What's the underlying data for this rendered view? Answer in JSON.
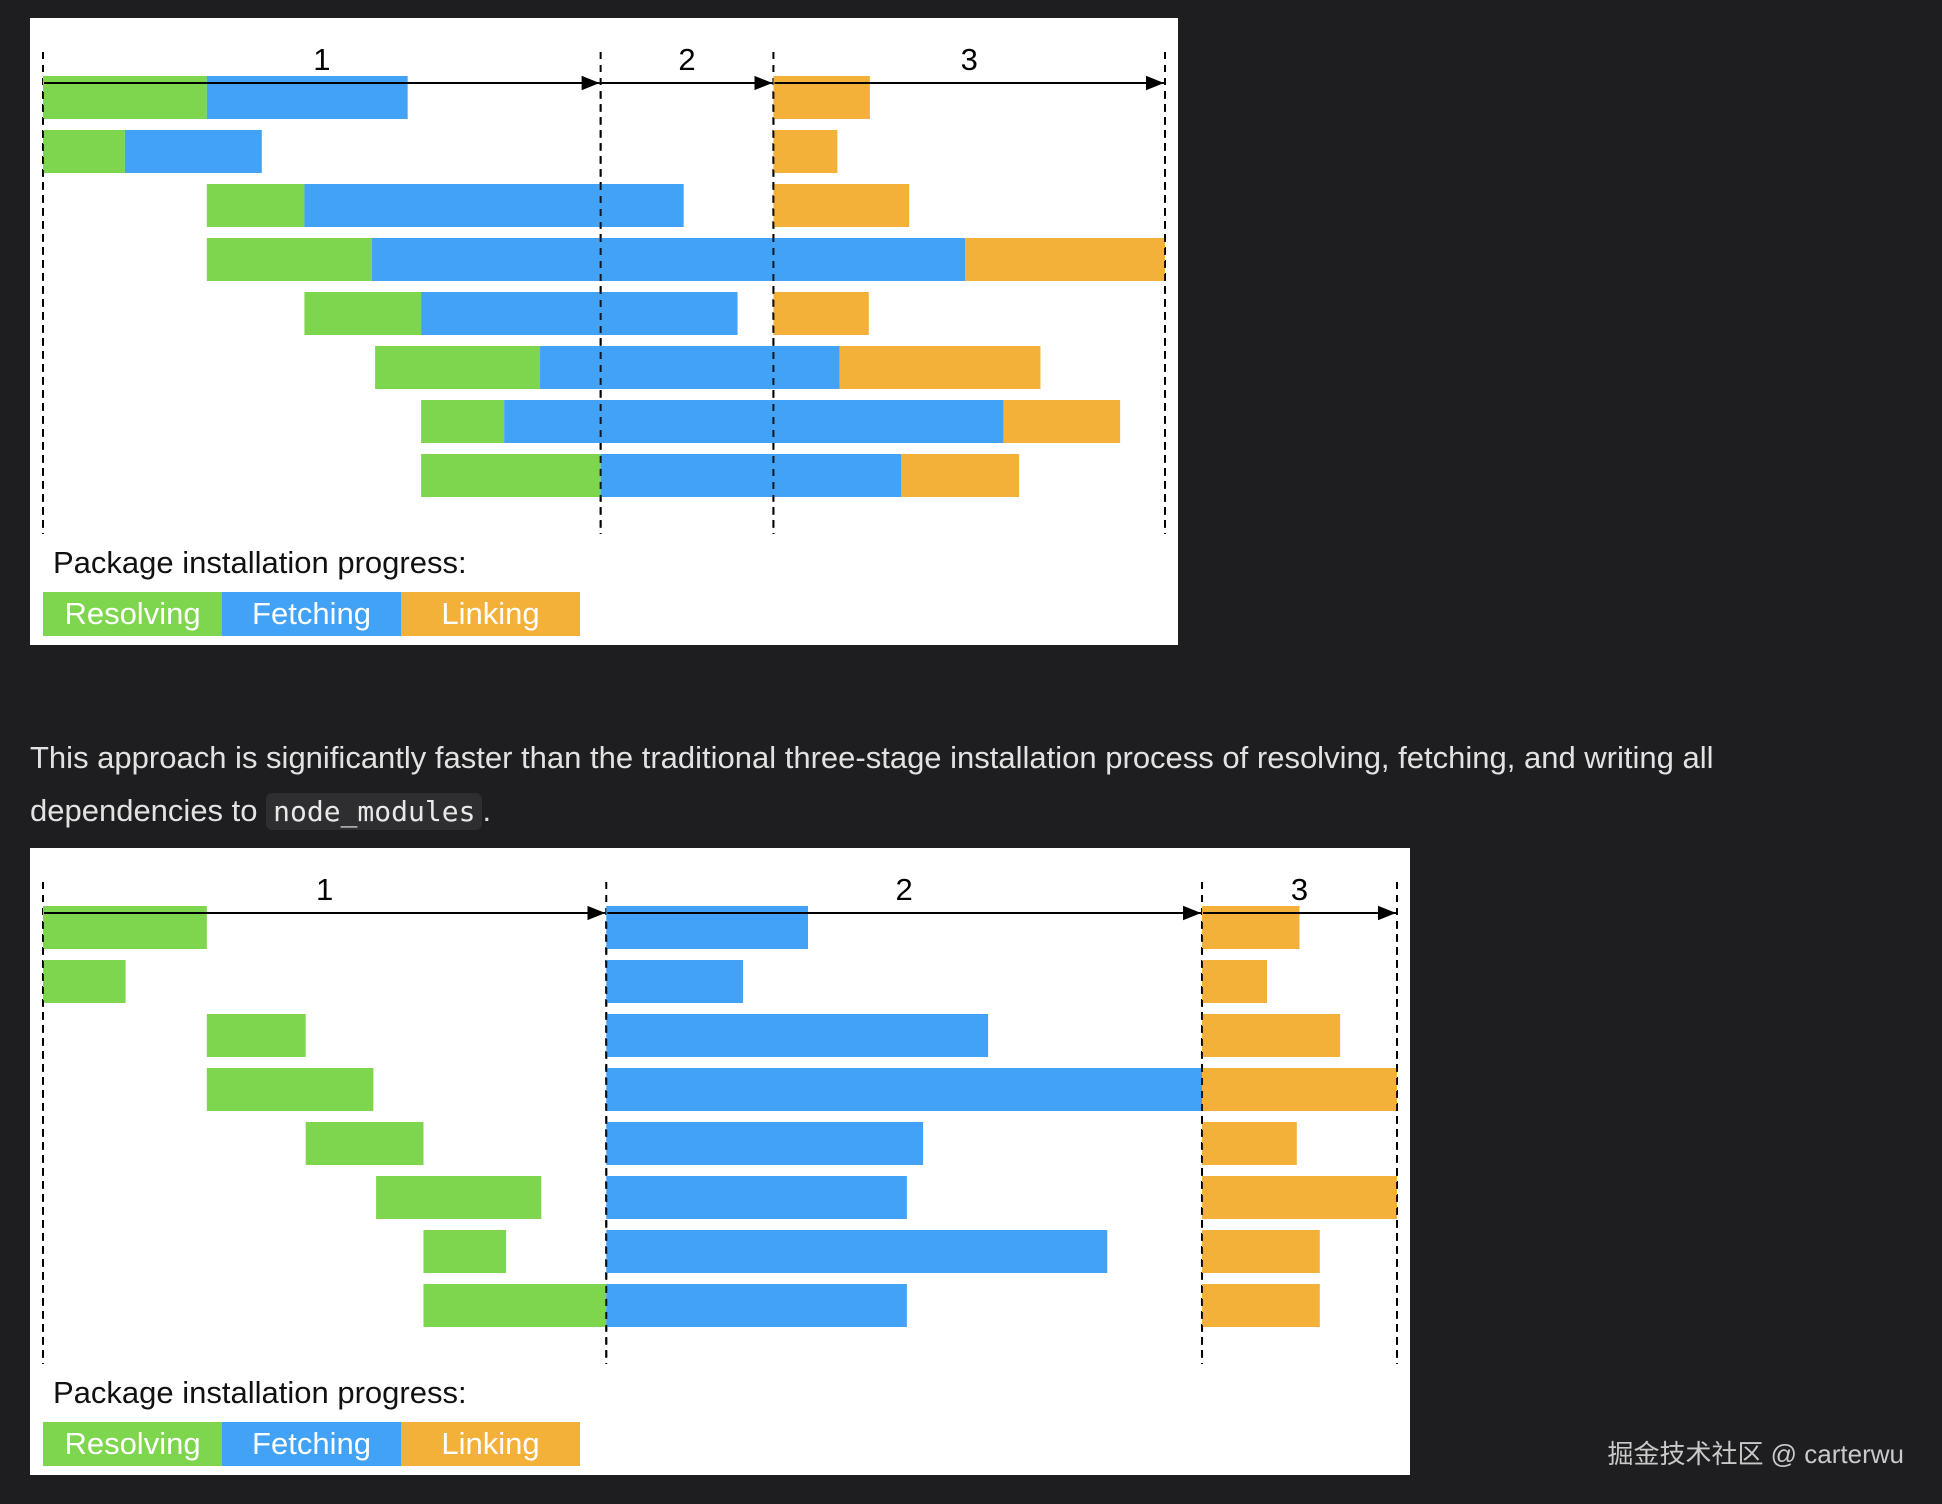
{
  "colors": {
    "resolving": "#7ed54e",
    "fetching": "#42a2f5",
    "linking": "#f4b13a",
    "page_background": "#1e1e20",
    "text": "#e2e2e2"
  },
  "paragraph": {
    "before_code": "This approach is significantly faster than the traditional three-stage installation process of resolving, fetching, and writing all dependencies to ",
    "code": "node_modules",
    "after_code": "."
  },
  "watermark": "掘金技术社区 @ carterwu",
  "chart_data": [
    {
      "type": "gantt",
      "caption": "Package installation progress:",
      "legend": [
        "Resolving",
        "Fetching",
        "Linking"
      ],
      "x_range": [
        0,
        100
      ],
      "phases": [
        {
          "label": "1",
          "start": 0,
          "end": 49.7
        },
        {
          "label": "2",
          "start": 49.7,
          "end": 65.1
        },
        {
          "label": "3",
          "start": 65.1,
          "end": 100
        }
      ],
      "rows": [
        [
          {
            "stage": "Resolving",
            "start": 0,
            "end": 14.6
          },
          {
            "stage": "Fetching",
            "start": 14.6,
            "end": 32.5
          },
          {
            "stage": "Linking",
            "start": 65.1,
            "end": 73.7
          }
        ],
        [
          {
            "stage": "Resolving",
            "start": 0,
            "end": 7.3
          },
          {
            "stage": "Fetching",
            "start": 7.3,
            "end": 19.5
          },
          {
            "stage": "Linking",
            "start": 65.1,
            "end": 70.8
          }
        ],
        [
          {
            "stage": "Resolving",
            "start": 14.6,
            "end": 23.3
          },
          {
            "stage": "Fetching",
            "start": 23.3,
            "end": 57.1
          },
          {
            "stage": "Linking",
            "start": 65.1,
            "end": 77.2
          }
        ],
        [
          {
            "stage": "Resolving",
            "start": 14.6,
            "end": 29.3
          },
          {
            "stage": "Fetching",
            "start": 29.3,
            "end": 82.2
          },
          {
            "stage": "Linking",
            "start": 82.2,
            "end": 100
          }
        ],
        [
          {
            "stage": "Resolving",
            "start": 23.3,
            "end": 33.7
          },
          {
            "stage": "Fetching",
            "start": 33.7,
            "end": 61.9
          },
          {
            "stage": "Linking",
            "start": 65.1,
            "end": 73.6
          }
        ],
        [
          {
            "stage": "Resolving",
            "start": 29.6,
            "end": 44.3
          },
          {
            "stage": "Fetching",
            "start": 44.3,
            "end": 71.0
          },
          {
            "stage": "Linking",
            "start": 71.0,
            "end": 88.9
          }
        ],
        [
          {
            "stage": "Resolving",
            "start": 33.7,
            "end": 41.1
          },
          {
            "stage": "Fetching",
            "start": 41.1,
            "end": 85.6
          },
          {
            "stage": "Linking",
            "start": 85.6,
            "end": 96.0
          }
        ],
        [
          {
            "stage": "Resolving",
            "start": 33.7,
            "end": 49.7
          },
          {
            "stage": "Fetching",
            "start": 49.7,
            "end": 76.5
          },
          {
            "stage": "Linking",
            "start": 76.5,
            "end": 87.0
          }
        ]
      ]
    },
    {
      "type": "gantt",
      "caption": "Package installation progress:",
      "legend": [
        "Resolving",
        "Fetching",
        "Linking"
      ],
      "x_range": [
        0,
        100
      ],
      "phases": [
        {
          "label": "1",
          "start": 0,
          "end": 41.6
        },
        {
          "label": "2",
          "start": 41.6,
          "end": 85.6
        },
        {
          "label": "3",
          "start": 85.6,
          "end": 100
        }
      ],
      "rows": [
        [
          {
            "stage": "Resolving",
            "start": 0,
            "end": 12.1
          },
          {
            "stage": "Fetching",
            "start": 41.6,
            "end": 56.5
          },
          {
            "stage": "Linking",
            "start": 85.6,
            "end": 92.8
          }
        ],
        [
          {
            "stage": "Resolving",
            "start": 0,
            "end": 6.1
          },
          {
            "stage": "Fetching",
            "start": 41.6,
            "end": 51.7
          },
          {
            "stage": "Linking",
            "start": 85.6,
            "end": 90.4
          }
        ],
        [
          {
            "stage": "Resolving",
            "start": 12.1,
            "end": 19.4
          },
          {
            "stage": "Fetching",
            "start": 41.6,
            "end": 69.8
          },
          {
            "stage": "Linking",
            "start": 85.6,
            "end": 95.8
          }
        ],
        [
          {
            "stage": "Resolving",
            "start": 12.1,
            "end": 24.4
          },
          {
            "stage": "Fetching",
            "start": 41.6,
            "end": 85.6
          },
          {
            "stage": "Linking",
            "start": 85.6,
            "end": 100
          }
        ],
        [
          {
            "stage": "Resolving",
            "start": 19.4,
            "end": 28.1
          },
          {
            "stage": "Fetching",
            "start": 41.6,
            "end": 65.0
          },
          {
            "stage": "Linking",
            "start": 85.6,
            "end": 92.6
          }
        ],
        [
          {
            "stage": "Resolving",
            "start": 24.6,
            "end": 36.8
          },
          {
            "stage": "Fetching",
            "start": 41.6,
            "end": 63.8
          },
          {
            "stage": "Linking",
            "start": 85.6,
            "end": 100
          }
        ],
        [
          {
            "stage": "Resolving",
            "start": 28.1,
            "end": 34.2
          },
          {
            "stage": "Fetching",
            "start": 41.6,
            "end": 78.6
          },
          {
            "stage": "Linking",
            "start": 85.6,
            "end": 94.3
          }
        ],
        [
          {
            "stage": "Resolving",
            "start": 28.1,
            "end": 41.6
          },
          {
            "stage": "Fetching",
            "start": 41.6,
            "end": 63.8
          },
          {
            "stage": "Linking",
            "start": 85.6,
            "end": 94.3
          }
        ]
      ]
    }
  ]
}
